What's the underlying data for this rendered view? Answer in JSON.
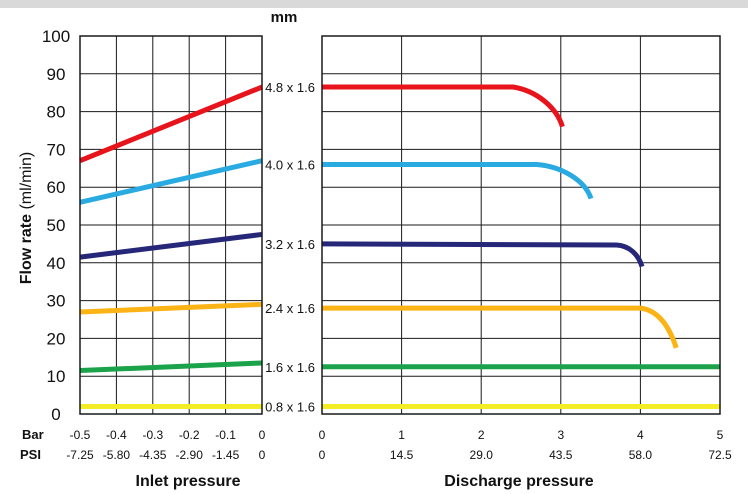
{
  "chart_data": [
    {
      "type": "line",
      "panel": "inlet",
      "ylabel": "Flow rate",
      "ylabel_unit": "(ml/min)",
      "xlabel": "Inlet pressure",
      "ylim": [
        0,
        100
      ],
      "yticks": [
        "0",
        "10",
        "20",
        "30",
        "40",
        "50",
        "60",
        "70",
        "80",
        "90",
        "100"
      ],
      "xlim": [
        -0.5,
        0
      ],
      "bar_label": "Bar",
      "psi_label": "PSI",
      "xticks_bar": [
        "-0.5",
        "-0.4",
        "-0.3",
        "-0.2",
        "-0.1",
        "0"
      ],
      "xticks_psi": [
        "-7.25",
        "-5.80",
        "-4.35",
        "-2.90",
        "-1.45",
        "0"
      ],
      "grid": true,
      "series": [
        {
          "color": "#e8141c",
          "x": [
            -0.5,
            0
          ],
          "y": [
            67,
            86.5
          ]
        },
        {
          "color": "#29abe2",
          "x": [
            -0.5,
            0
          ],
          "y": [
            56,
            67
          ]
        },
        {
          "color": "#27277a",
          "x": [
            -0.5,
            0
          ],
          "y": [
            41.5,
            47.5
          ]
        },
        {
          "color": "#fbb315",
          "x": [
            -0.5,
            0
          ],
          "y": [
            27,
            29
          ]
        },
        {
          "color": "#1aa34a",
          "x": [
            -0.5,
            0
          ],
          "y": [
            11.5,
            13.5
          ]
        },
        {
          "color": "#f4ec25",
          "x": [
            -0.5,
            0
          ],
          "y": [
            2,
            2
          ]
        }
      ]
    },
    {
      "type": "line",
      "panel": "discharge",
      "xlabel": "Discharge pressure",
      "ylim": [
        0,
        100
      ],
      "xlim": [
        0,
        5
      ],
      "xticks_bar": [
        "0",
        "1",
        "2",
        "3",
        "4",
        "5"
      ],
      "xticks_psi": [
        "0",
        "14.5",
        "29.0",
        "43.5",
        "58.0",
        "72.5"
      ],
      "unit_title": "mm",
      "grid": true,
      "series": [
        {
          "name": "4.8 x 1.6",
          "color": "#e8141c",
          "x": [
            0,
            2.4,
            2.7,
            2.95,
            3.02
          ],
          "y": [
            86.5,
            86.5,
            85.5,
            81,
            76
          ]
        },
        {
          "name": "4.0 x 1.6",
          "color": "#29abe2",
          "x": [
            0,
            2.7,
            3.0,
            3.3,
            3.38
          ],
          "y": [
            66,
            66,
            65.5,
            62,
            57
          ]
        },
        {
          "name": "3.2 x 1.6",
          "color": "#27277a",
          "x": [
            0,
            3.7,
            3.85,
            3.97,
            4.02
          ],
          "y": [
            45,
            44.7,
            44.5,
            42.5,
            39
          ]
        },
        {
          "name": "2.4 x 1.6",
          "color": "#fbb315",
          "x": [
            0,
            4.0,
            4.2,
            4.35,
            4.45
          ],
          "y": [
            28,
            28,
            27.5,
            24,
            17.5
          ]
        },
        {
          "name": "1.6 x 1.6",
          "color": "#1aa34a",
          "x": [
            0,
            5
          ],
          "y": [
            12.5,
            12.5
          ]
        },
        {
          "name": "0.8 x 1.6",
          "color": "#f4ec25",
          "x": [
            0,
            5
          ],
          "y": [
            2,
            2
          ]
        }
      ]
    }
  ]
}
